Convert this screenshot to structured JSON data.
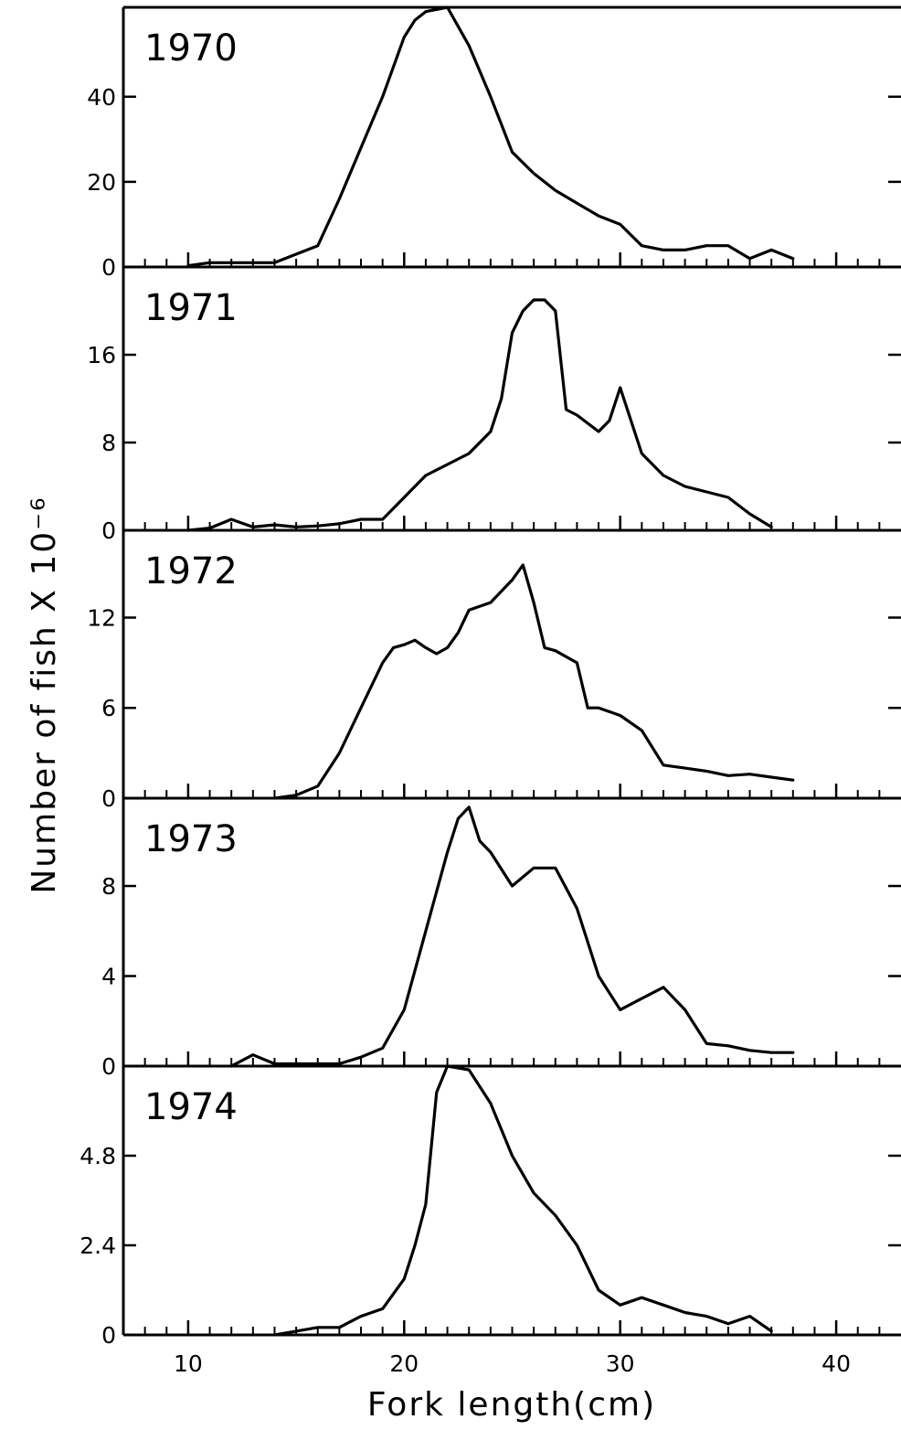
{
  "chart_data": {
    "type": "line",
    "xlabel": "Fork length(cm)",
    "ylabel": "Number of fish X 10⁻⁶",
    "xlim": [
      7,
      43
    ],
    "xticks": [
      10,
      20,
      30,
      40
    ],
    "grid": false,
    "legend": "none",
    "panels": [
      {
        "label": "1970",
        "ylim": [
          0,
          61
        ],
        "yticks": [
          0,
          20,
          40
        ],
        "x": [
          10,
          11,
          12,
          13,
          14,
          15,
          16,
          17,
          18,
          19,
          20,
          20.5,
          21,
          22,
          23,
          24,
          25,
          26,
          27,
          28,
          29,
          30,
          31,
          32,
          33,
          34,
          35,
          36,
          37,
          38
        ],
        "y": [
          0.3,
          1,
          1,
          1,
          1,
          3,
          5,
          16,
          28,
          40,
          54,
          58,
          60,
          61,
          52,
          40,
          27,
          22,
          18,
          15,
          12,
          10,
          5,
          4,
          4,
          5,
          5,
          2,
          4,
          2
        ]
      },
      {
        "label": "1971",
        "ylim": [
          0,
          24
        ],
        "yticks": [
          0,
          8,
          16
        ],
        "x": [
          10,
          11,
          12,
          13,
          14,
          15,
          16,
          17,
          18,
          19,
          20,
          21,
          22,
          23,
          24,
          24.5,
          25,
          25.5,
          26,
          26.5,
          27,
          27.5,
          28,
          29,
          29.5,
          30,
          31,
          32,
          33,
          34,
          35,
          36,
          37
        ],
        "y": [
          0,
          0.2,
          1,
          0.3,
          0.5,
          0.3,
          0.4,
          0.6,
          1,
          1,
          3,
          5,
          6,
          7,
          9,
          12,
          18,
          20,
          21,
          21,
          20,
          11,
          10.5,
          9,
          10,
          13,
          7,
          5,
          4,
          3.5,
          3,
          1.5,
          0.3
        ]
      },
      {
        "label": "1972",
        "ylim": [
          0,
          17.8
        ],
        "yticks": [
          0,
          6,
          12
        ],
        "x": [
          14,
          15,
          16,
          17,
          18,
          19,
          19.5,
          20,
          20.5,
          21,
          21.5,
          22,
          22.5,
          23,
          24,
          25,
          25.5,
          26,
          26.5,
          27,
          28,
          28.5,
          29,
          30,
          31,
          32,
          33,
          34,
          35,
          36,
          37,
          38
        ],
        "y": [
          0,
          0.2,
          0.8,
          3,
          6,
          9,
          10,
          10.2,
          10.5,
          10,
          9.6,
          10,
          11,
          12.5,
          13,
          14.5,
          15.5,
          13,
          10,
          9.8,
          9,
          6,
          6,
          5.5,
          4.5,
          2.2,
          2,
          1.8,
          1.5,
          1.6,
          1.4,
          1.2
        ]
      },
      {
        "label": "1973",
        "ylim": [
          0,
          11.9
        ],
        "yticks": [
          0,
          4,
          8
        ],
        "x": [
          12,
          13,
          14,
          15,
          16,
          17,
          18,
          19,
          20,
          21,
          22,
          22.5,
          23,
          23.5,
          24,
          25,
          26,
          27,
          28,
          29,
          30,
          31,
          32,
          33,
          34,
          35,
          36,
          37,
          38
        ],
        "y": [
          0,
          0.5,
          0.1,
          0.1,
          0.1,
          0.1,
          0.4,
          0.8,
          2.5,
          6,
          9.5,
          11,
          11.5,
          10,
          9.5,
          8,
          8.8,
          8.8,
          7,
          4,
          2.5,
          3,
          3.5,
          2.5,
          1,
          0.9,
          0.7,
          0.6,
          0.6
        ]
      },
      {
        "label": "1974",
        "ylim": [
          0,
          7.2
        ],
        "yticks": [
          0,
          2.4,
          4.8
        ],
        "x": [
          14,
          15,
          16,
          17,
          18,
          19,
          20,
          20.5,
          21,
          21.5,
          22,
          23,
          24,
          25,
          26,
          27,
          28,
          29,
          30,
          31,
          32,
          33,
          34,
          35,
          36,
          37
        ],
        "y": [
          0,
          0.1,
          0.2,
          0.2,
          0.5,
          0.7,
          1.5,
          2.4,
          3.5,
          6.5,
          7.2,
          7.1,
          6.2,
          4.8,
          3.8,
          3.2,
          2.4,
          1.2,
          0.8,
          1,
          0.8,
          0.6,
          0.5,
          0.3,
          0.5,
          0.1
        ]
      }
    ]
  }
}
